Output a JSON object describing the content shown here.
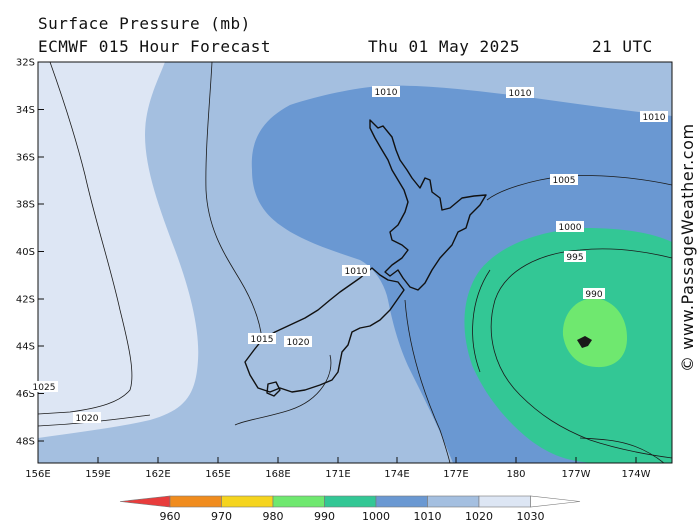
{
  "header": {
    "title": "Surface Pressure (mb)",
    "model_line": "ECMWF 015 Hour Forecast",
    "date": "Thu 01 May 2025",
    "time": "21 UTC"
  },
  "credit": "© www.PassageWeather.com",
  "latitude_labels": [
    "32S",
    "34S",
    "36S",
    "38S",
    "40S",
    "42S",
    "44S",
    "46S",
    "48S"
  ],
  "longitude_labels": [
    "156E",
    "159E",
    "162E",
    "165E",
    "168E",
    "171E",
    "174E",
    "177E",
    "180",
    "177W",
    "174W"
  ],
  "isobar_labels": [
    "1010",
    "1010",
    "1010",
    "1005",
    "1000",
    "995",
    "990",
    "1010",
    "1015",
    "1020",
    "1025",
    "1020"
  ],
  "colorbar": {
    "labels": [
      "960",
      "970",
      "980",
      "990",
      "1000",
      "1010",
      "1020",
      "1030"
    ],
    "colors": [
      "#e83c3c",
      "#f08c1e",
      "#f5d41e",
      "#6fe86f",
      "#33c795",
      "#6a98d2",
      "#a4bfe0",
      "#dde6f4"
    ]
  },
  "fill_colors": {
    "pressure_1020_1030": "#dde6f4",
    "pressure_1010_1020": "#a4bfe0",
    "pressure_1000_1010": "#6a98d2",
    "pressure_990_1000": "#33c795",
    "pressure_below_990": "#6fe86f"
  }
}
